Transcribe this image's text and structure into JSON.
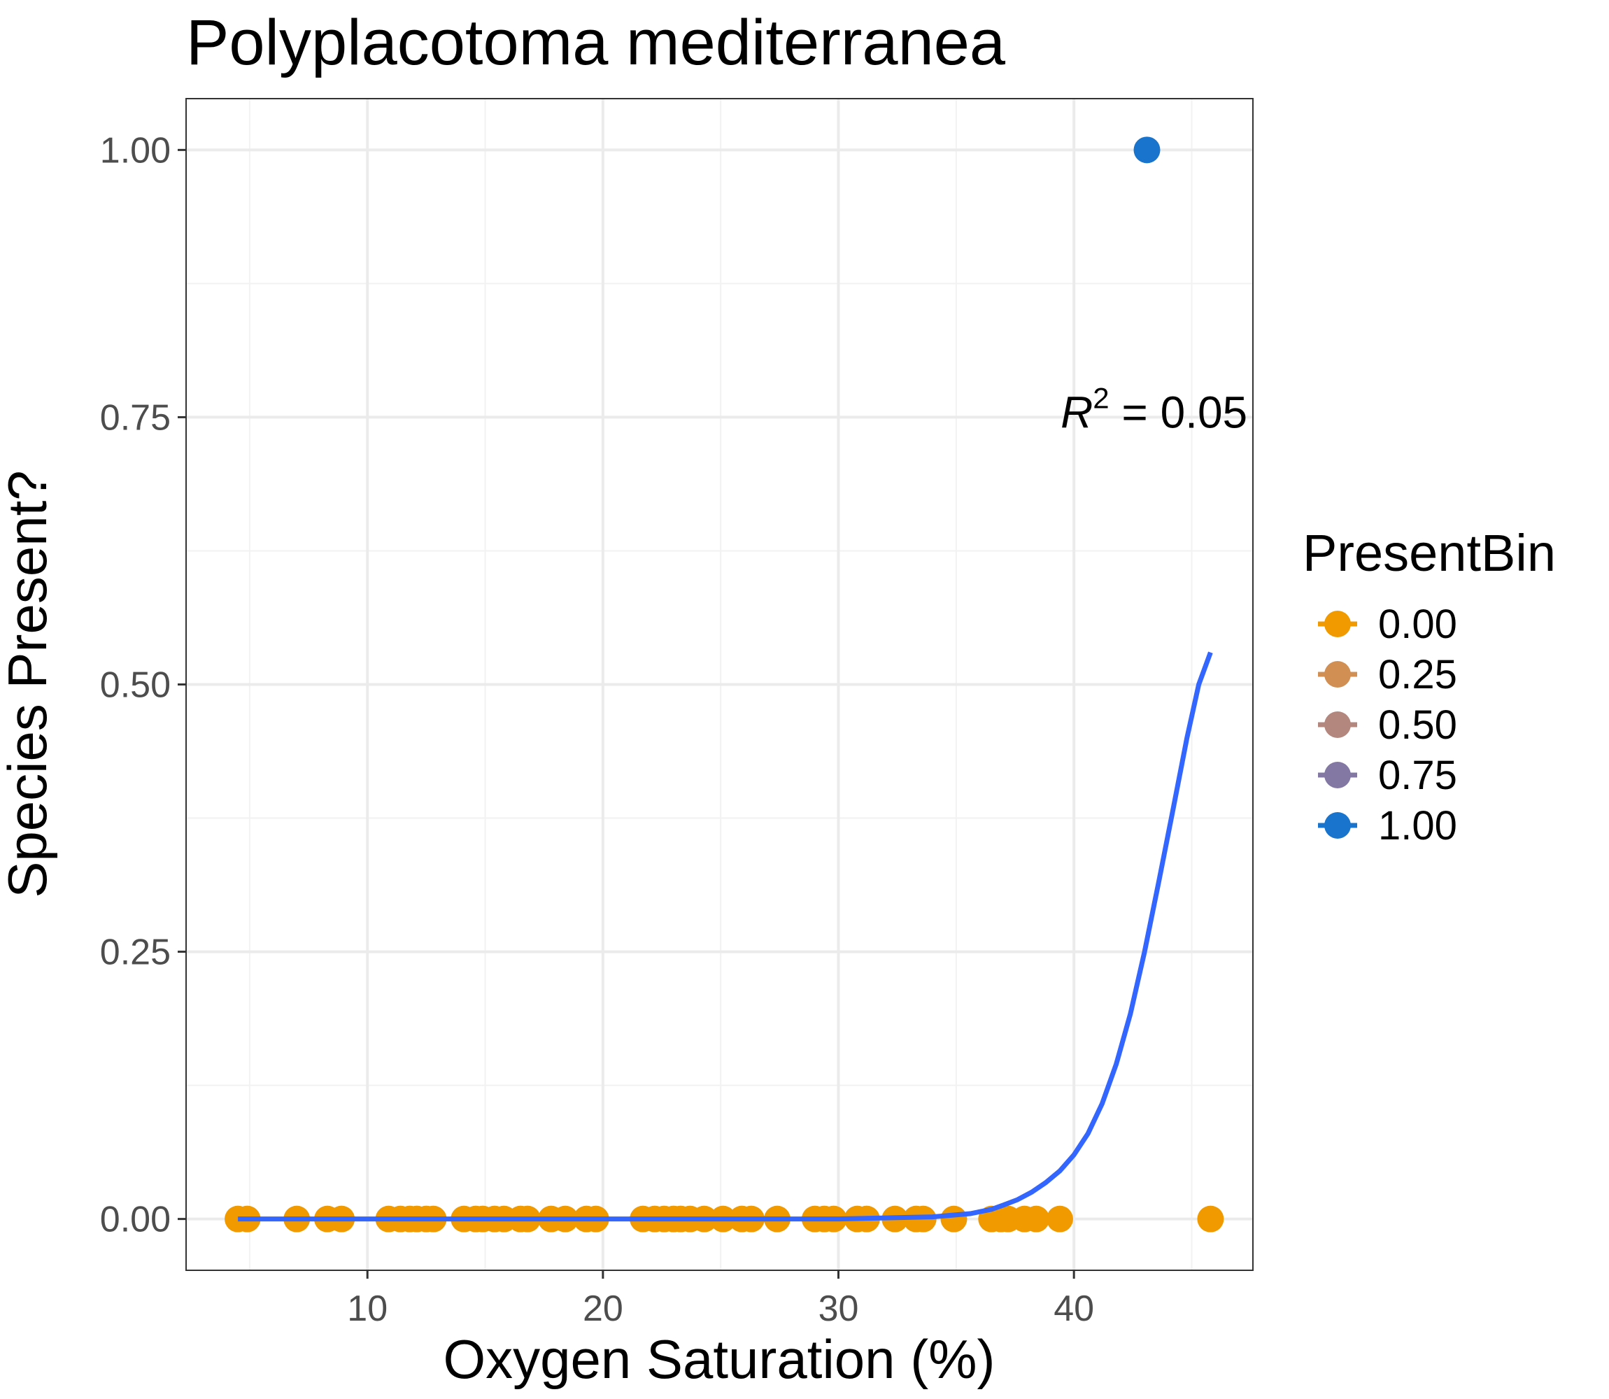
{
  "chart_data": {
    "type": "scatter",
    "title": "Polyplacotoma mediterranea",
    "xlabel": "Oxygen Saturation (%)",
    "ylabel": "Species Present?",
    "xlim": [
      2.3,
      47.6
    ],
    "ylim": [
      -0.048,
      1.048
    ],
    "x_ticks": [
      10,
      20,
      30,
      40
    ],
    "x_tick_labels": [
      "10",
      "20",
      "30",
      "40"
    ],
    "y_ticks": [
      0,
      0.25,
      0.5,
      0.75,
      1.0
    ],
    "y_tick_labels": [
      "0.00",
      "0.25",
      "0.50",
      "0.75",
      "1.00"
    ],
    "grid": true,
    "legend": {
      "title": "PresentBin",
      "position": "right",
      "entries": [
        {
          "label": "0.00",
          "color": "#F09A00"
        },
        {
          "label": "0.25",
          "color": "#D18F54"
        },
        {
          "label": "0.50",
          "color": "#B3877E"
        },
        {
          "label": "0.75",
          "color": "#8278A3"
        },
        {
          "label": "1.00",
          "color": "#1874CD"
        }
      ]
    },
    "points": {
      "absent_y": 0,
      "absent_color": "#F09A00",
      "absent_x": [
        4.5,
        4.9,
        7.0,
        8.3,
        8.9,
        10.9,
        11.4,
        11.8,
        12.1,
        12.5,
        12.8,
        14.1,
        14.6,
        14.9,
        15.4,
        15.8,
        16.5,
        16.8,
        17.8,
        18.4,
        19.3,
        19.7,
        21.7,
        22.2,
        22.6,
        23.0,
        23.3,
        23.7,
        24.3,
        25.1,
        25.9,
        26.3,
        27.4,
        29.0,
        29.4,
        29.8,
        30.8,
        31.2,
        32.4,
        33.3,
        33.6,
        34.9,
        36.5,
        36.9,
        37.2,
        37.9,
        38.4,
        39.4,
        45.8
      ],
      "present": [
        {
          "x": 43.1,
          "y": 1,
          "color": "#1874CD"
        }
      ]
    },
    "fit_curve": {
      "color": "#3366FF",
      "x": [
        4.5,
        30.0,
        34.0,
        35.6,
        36.5,
        37.0,
        37.6,
        38.2,
        38.8,
        39.4,
        40.0,
        40.6,
        41.2,
        41.8,
        42.4,
        43.0,
        43.6,
        44.2,
        44.8,
        45.3,
        45.8
      ],
      "y": [
        0.0,
        0.0,
        0.002,
        0.005,
        0.009,
        0.013,
        0.018,
        0.025,
        0.034,
        0.045,
        0.06,
        0.08,
        0.108,
        0.145,
        0.192,
        0.25,
        0.315,
        0.382,
        0.45,
        0.5,
        0.53
      ]
    },
    "annotation": {
      "r_symbol": "R",
      "superscript": "2",
      "text": " = 0.05",
      "x": 43.4,
      "y": 0.74
    }
  }
}
